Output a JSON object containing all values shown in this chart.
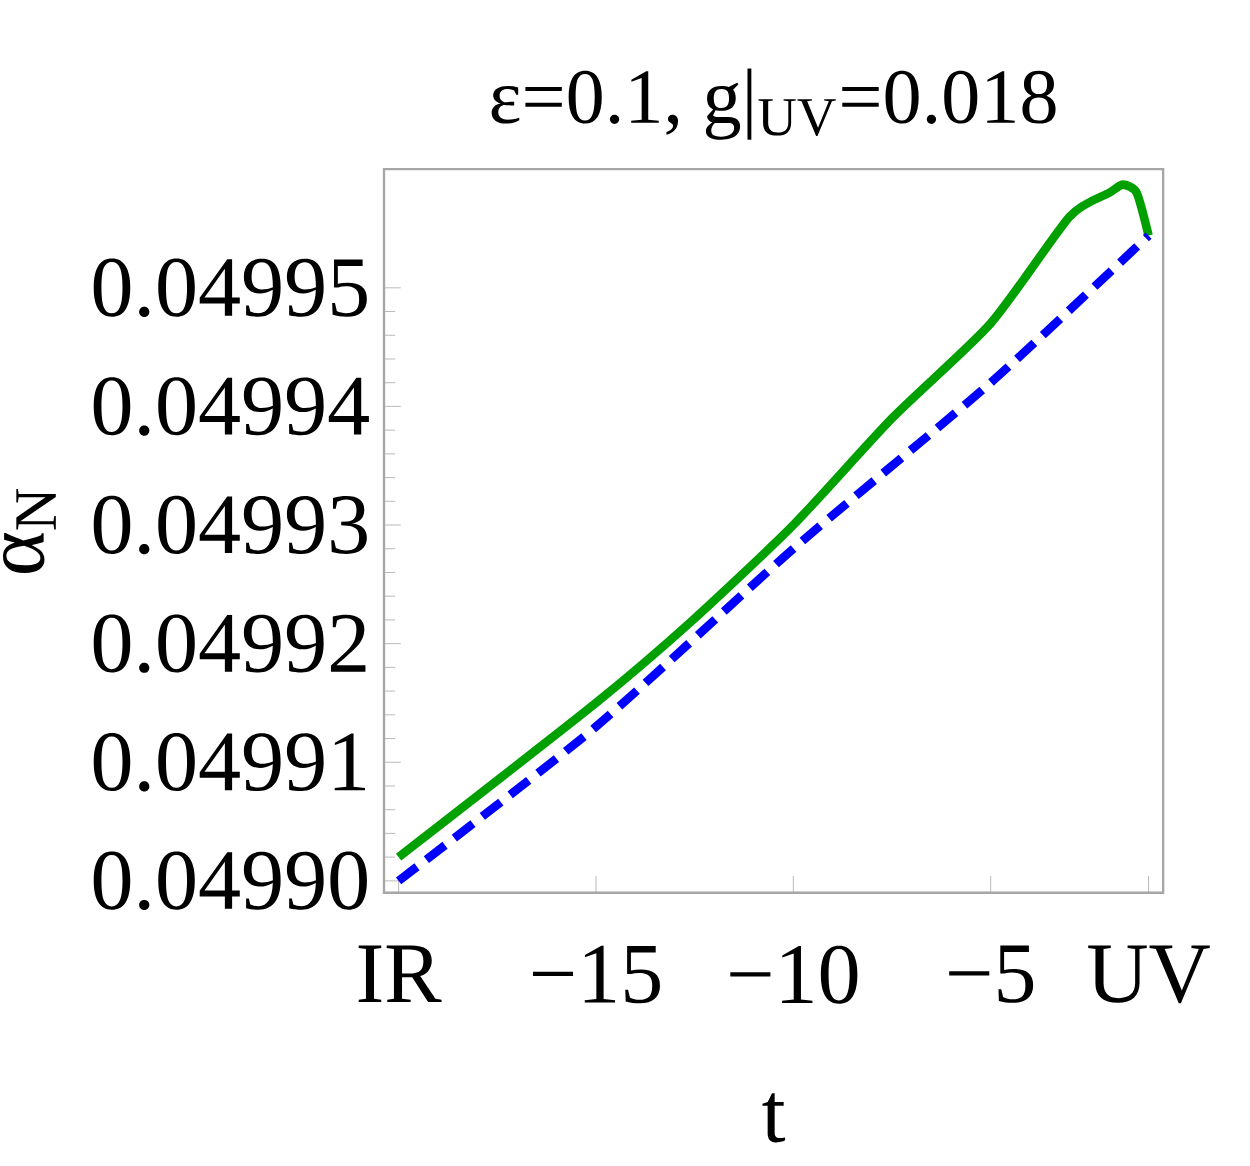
{
  "chart_data": {
    "type": "line",
    "title": "ε=0.1,  g|$_{UV}$=0.018",
    "xlabel": "t",
    "ylabel": "α$_{N}$",
    "xlim": [
      -20.37,
      -0.63
    ],
    "ylim": [
      0.049899,
      0.04996
    ],
    "xticks": [
      {
        "value": -20,
        "label": "IR"
      },
      {
        "value": -15,
        "label": "−15"
      },
      {
        "value": -10,
        "label": "−10"
      },
      {
        "value": -5,
        "label": "−5"
      },
      {
        "value": -1,
        "label": "UV"
      }
    ],
    "yticks": [
      {
        "value": 0.0499,
        "label": "0.04990"
      },
      0.04991,
      0.04992,
      0.04993,
      0.04994,
      0.04995
    ],
    "series": [
      {
        "color": "#00a000",
        "line_style": "solid",
        "x": [
          -20,
          -15,
          -12.54,
          -10,
          -7.5,
          -5,
          -3,
          -2,
          -1.65,
          -1.3,
          -1
        ],
        "values": [
          0.049902,
          0.049915,
          0.049922,
          0.04993,
          0.049939,
          0.049947,
          0.049956,
          0.049958,
          0.0499587,
          0.049958,
          0.0499544
        ]
      },
      {
        "color": "#0000ff",
        "line_style": "dashed",
        "x": [
          -20,
          -15,
          -10,
          -5,
          -1
        ],
        "values": [
          0.0499,
          0.049913,
          0.049928,
          0.049942,
          0.0499544
        ]
      }
    ]
  }
}
